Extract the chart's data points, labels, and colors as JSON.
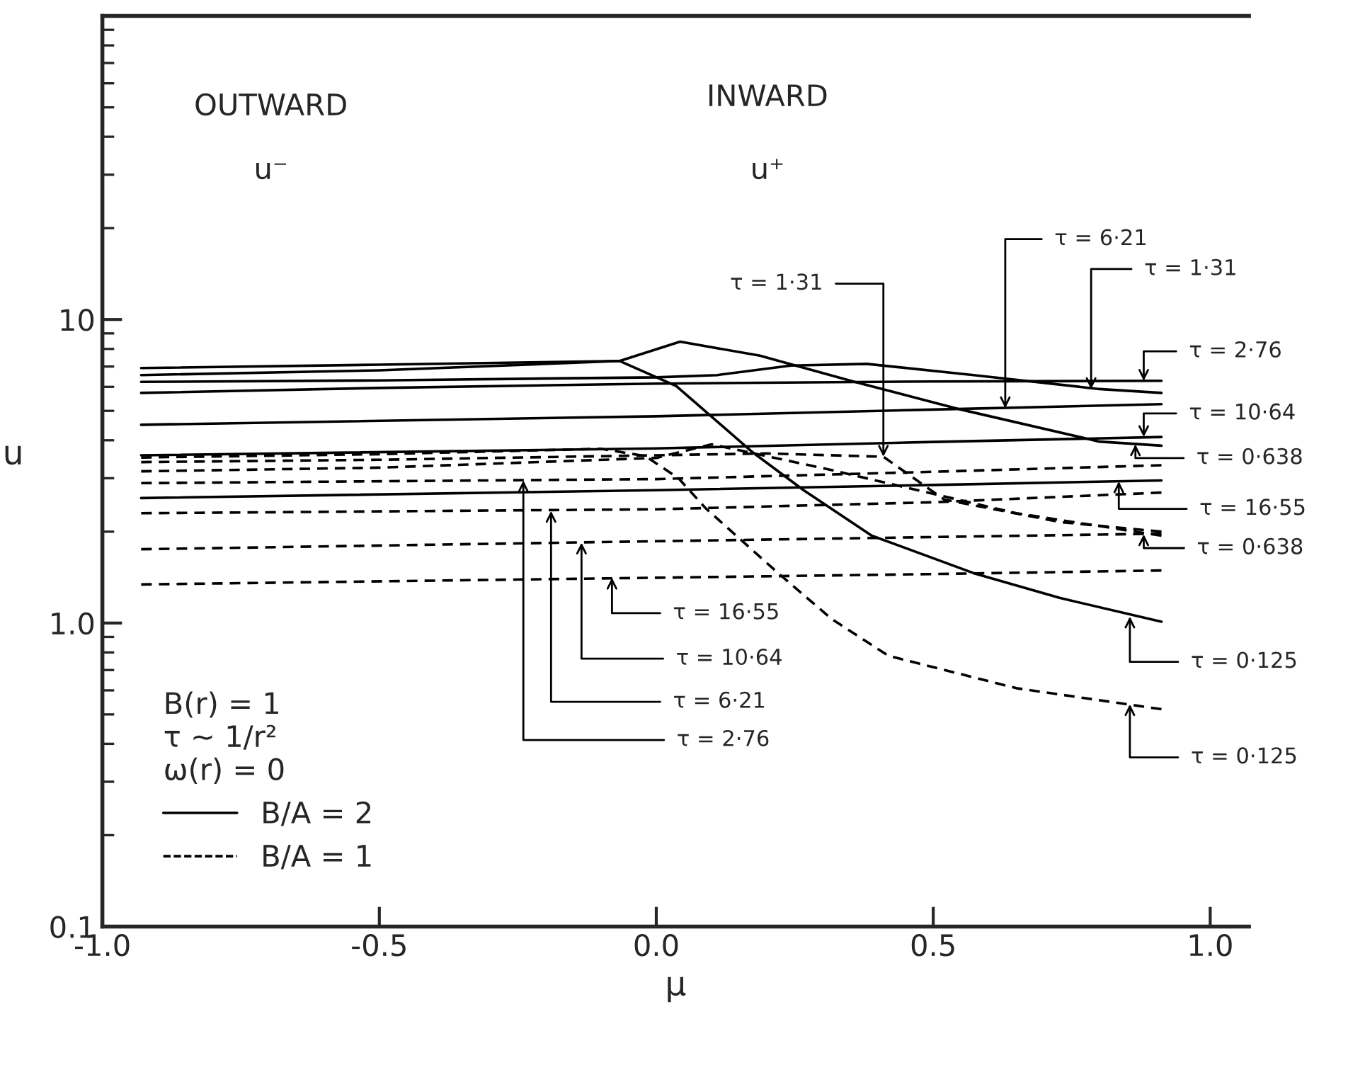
{
  "chart_data": {
    "type": "line",
    "xlabel": "μ",
    "ylabel": "u",
    "log": "y",
    "xlim": [
      -1.0,
      1.07
    ],
    "ylim": [
      0.1,
      100
    ],
    "xticks": [
      {
        "value": -1.0,
        "label": "-1.0"
      },
      -0.5,
      {
        "value": 0.0,
        "label": "0.0"
      },
      0.5,
      {
        "value": 1.0,
        "label": "1.0"
      }
    ],
    "yticks": [
      0.1,
      {
        "value": 1.0,
        "label": "1.0"
      },
      10
    ],
    "grid": false,
    "legend": "bottom left",
    "legend_title": "B(r) = 1\nτ ~ 1/r²\nω(r) = 0",
    "marker": "none",
    "series": [
      {
        "name": "B/A = 2",
        "color": "#000000",
        "line_style": "solid",
        "x": [
          -0.93,
          -0.5,
          -0.066,
          0.036,
          0.174,
          0.266,
          0.389,
          0.573,
          0.728,
          0.912
        ],
        "values": [
          6.92,
          7.1,
          7.3,
          6.04,
          3.65,
          2.74,
          1.94,
          1.46,
          1.21,
          1.01
        ]
      },
      {
        "color": "#000000",
        "line_style": "solid",
        "x": [
          -0.93,
          -0.5,
          -0.066,
          0.043,
          0.187,
          0.358,
          0.55,
          0.8,
          0.912
        ],
        "values": [
          6.56,
          6.8,
          7.3,
          8.45,
          7.6,
          6.23,
          5.05,
          3.96,
          3.84
        ]
      },
      {
        "color": "#000000",
        "line_style": "solid",
        "x": [
          -0.93,
          -0.5,
          0.0,
          0.11,
          0.243,
          0.38,
          0.573,
          0.8,
          0.912
        ],
        "values": [
          6.23,
          6.3,
          6.45,
          6.56,
          7.05,
          7.14,
          6.56,
          5.9,
          5.73
        ]
      },
      {
        "color": "#000000",
        "line_style": "solid",
        "x": [
          -0.93,
          -0.5,
          0.0,
          0.5,
          0.912
        ],
        "values": [
          5.73,
          5.95,
          6.15,
          6.25,
          6.28
        ]
      },
      {
        "color": "#000000",
        "line_style": "solid",
        "x": [
          -0.93,
          0.0,
          0.5,
          0.912
        ],
        "values": [
          4.5,
          4.8,
          5.05,
          5.26
        ]
      },
      {
        "color": "#000000",
        "line_style": "solid",
        "x": [
          -0.93,
          0.0,
          0.5,
          0.912
        ],
        "values": [
          3.57,
          3.76,
          3.95,
          4.1
        ]
      },
      {
        "color": "#000000",
        "line_style": "solid",
        "x": [
          -0.93,
          0.0,
          0.5,
          0.912
        ],
        "values": [
          2.58,
          2.74,
          2.85,
          2.95
        ]
      },
      {
        "name": "B/A = 1",
        "color": "#000000",
        "line_style": "dashed",
        "x": [
          -0.93,
          -0.5,
          -0.1,
          -0.02,
          0.04,
          0.089,
          0.22,
          0.317,
          0.419,
          0.65,
          0.912
        ],
        "values": [
          3.51,
          3.6,
          3.75,
          3.55,
          3.0,
          2.39,
          1.46,
          1.03,
          0.78,
          0.61,
          0.52
        ]
      },
      {
        "color": "#000000",
        "line_style": "dashed",
        "x": [
          -0.93,
          -0.5,
          0.0,
          0.1,
          0.31,
          0.65,
          0.912
        ],
        "values": [
          3.16,
          3.25,
          3.5,
          3.88,
          3.21,
          2.3,
          1.94
        ]
      },
      {
        "color": "#000000",
        "line_style": "dashed",
        "x": [
          -0.93,
          -0.5,
          0.0,
          0.2,
          0.41,
          0.52,
          0.73,
          0.912
        ],
        "values": [
          3.39,
          3.45,
          3.57,
          3.62,
          3.53,
          2.55,
          2.15,
          2.0
        ]
      },
      {
        "color": "#000000",
        "line_style": "dashed",
        "x": [
          -0.93,
          0.0,
          0.5,
          0.912
        ],
        "values": [
          2.89,
          2.98,
          3.15,
          3.31
        ]
      },
      {
        "color": "#000000",
        "line_style": "dashed",
        "x": [
          -0.93,
          0.0,
          0.5,
          0.912
        ],
        "values": [
          2.3,
          2.37,
          2.5,
          2.69
        ]
      },
      {
        "color": "#000000",
        "line_style": "dashed",
        "x": [
          -0.93,
          0.0,
          0.5,
          0.912
        ],
        "values": [
          1.75,
          1.86,
          1.92,
          1.97
        ]
      },
      {
        "color": "#000000",
        "line_style": "dashed",
        "x": [
          -0.93,
          0.0,
          0.5,
          0.912
        ],
        "values": [
          1.34,
          1.41,
          1.45,
          1.49
        ]
      }
    ],
    "annotations": [
      "OUTWARD",
      "u⁻",
      "INWARD",
      "u⁺",
      {
        "text": "τ = 1·31",
        "x": 0.41,
        "y": 3.53
      },
      {
        "text": "τ = 6·21",
        "x": 0.63,
        "y": 5.1
      },
      {
        "text": "τ = 1·31",
        "x": 0.785,
        "y": 5.9
      },
      {
        "text": "τ = 2·76",
        "x": 0.88,
        "y": 6.28
      },
      {
        "text": "τ = 10·64",
        "x": 0.88,
        "y": 4.1
      },
      {
        "text": "τ = 0·638",
        "x": 0.865,
        "y": 3.88
      },
      {
        "text": "τ = 16·55",
        "x": 0.835,
        "y": 2.93
      },
      {
        "text": "τ = 0·638",
        "x": 0.88,
        "y": 1.96
      },
      {
        "text": "τ = 0·125",
        "x": 0.855,
        "y": 1.05
      },
      {
        "text": "τ = 0·125",
        "x": 0.855,
        "y": 0.54
      },
      {
        "text": "τ = 16·55",
        "x": -0.08,
        "y": 1.41
      },
      {
        "text": "τ = 10·64",
        "x": -0.135,
        "y": 1.84
      },
      {
        "text": "τ = 6·21",
        "x": -0.19,
        "y": 2.34
      },
      {
        "text": "τ = 2·76",
        "x": -0.24,
        "y": 2.95
      }
    ]
  }
}
